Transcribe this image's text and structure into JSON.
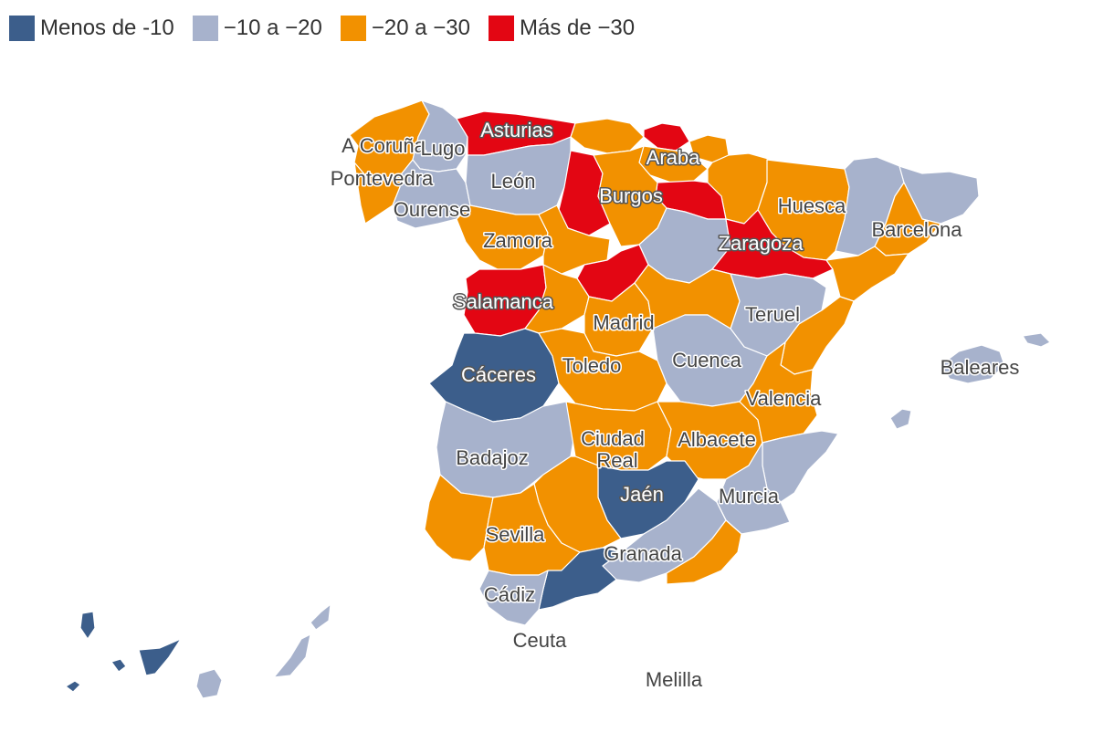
{
  "legend": [
    {
      "label": "Menos de -10",
      "color": "#3c5e8b"
    },
    {
      "label": "−10 a −20",
      "color": "#a7b2cc"
    },
    {
      "label": "−20 a −30",
      "color": "#f29100"
    },
    {
      "label": "Más de −30",
      "color": "#e30613"
    }
  ],
  "regions": [
    {
      "label": "A Coruña",
      "category": 2
    },
    {
      "label": "Lugo",
      "category": 1
    },
    {
      "label": "Asturias",
      "category": 3
    },
    {
      "label": "Pontevedra",
      "category": 1
    },
    {
      "label": "Ourense",
      "category": 1
    },
    {
      "label": "León",
      "category": 1
    },
    {
      "label": "Araba",
      "category": 3
    },
    {
      "label": "Burgos",
      "category": 3
    },
    {
      "label": "Huesca",
      "category": 2
    },
    {
      "label": "Barcelona",
      "category": 2
    },
    {
      "label": "Zamora",
      "category": 2
    },
    {
      "label": "Zaragoza",
      "category": 3
    },
    {
      "label": "Salamanca",
      "category": 3
    },
    {
      "label": "Teruel",
      "category": 1
    },
    {
      "label": "Madrid",
      "category": 2
    },
    {
      "label": "Cáceres",
      "category": 0
    },
    {
      "label": "Cuenca",
      "category": 1
    },
    {
      "label": "Toledo",
      "category": 2
    },
    {
      "label": "Baleares",
      "category": 1
    },
    {
      "label": "Valencia",
      "category": 2
    },
    {
      "label": "Badajoz",
      "category": 1
    },
    {
      "label": "Ciudad Real",
      "category": 2
    },
    {
      "label": "Albacete",
      "category": 2
    },
    {
      "label": "Jaén",
      "category": 0
    },
    {
      "label": "Murcia",
      "category": 1
    },
    {
      "label": "Sevilla",
      "category": 2
    },
    {
      "label": "Granada",
      "category": 1
    },
    {
      "label": "Cádiz",
      "category": 1
    },
    {
      "label": "Ceuta",
      "category": 1
    },
    {
      "label": "Melilla",
      "category": 1
    }
  ]
}
